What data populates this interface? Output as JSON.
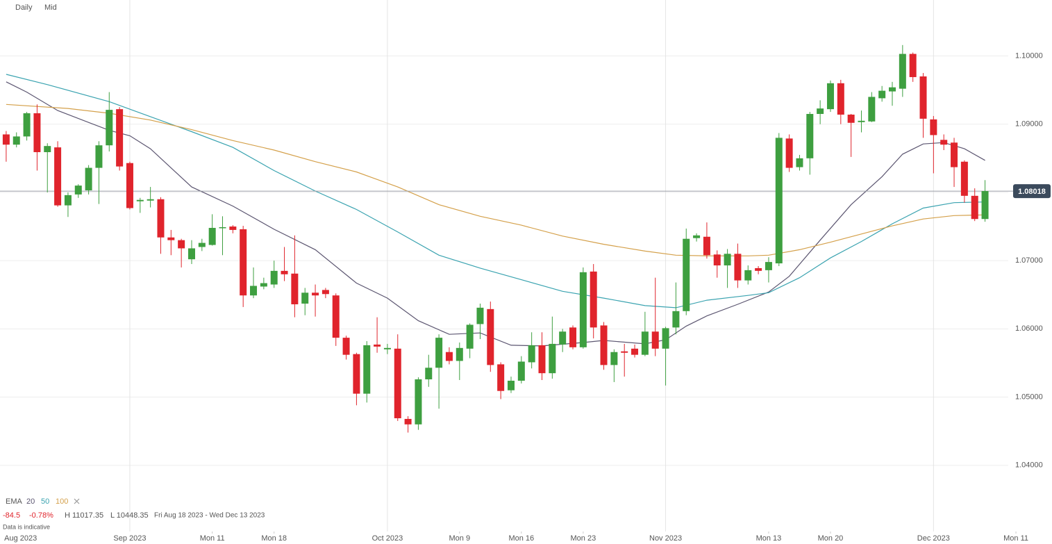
{
  "toolbar": {
    "interval": "Daily",
    "price_type": "Mid"
  },
  "chart_data": {
    "type": "candlestick",
    "up_color": "#3e9f40",
    "down_color": "#e0242c",
    "ylim": [
      1.0303,
      1.1082
    ],
    "xlim": [
      -0.6,
      101.5
    ],
    "yticks": [
      {
        "value": 1.1,
        "label": "1.10000"
      },
      {
        "value": 1.09,
        "label": "1.09000"
      },
      {
        "value": 1.08,
        "label": "1.08000"
      },
      {
        "value": 1.07,
        "label": "1.07000"
      },
      {
        "value": 1.06,
        "label": "1.06000"
      },
      {
        "value": 1.05,
        "label": "1.05000"
      },
      {
        "value": 1.04,
        "label": "1.04000"
      }
    ],
    "x_month_ticks": [
      {
        "value": 1.4,
        "label": "Aug 2023"
      },
      {
        "value": 12,
        "label": "Sep 2023"
      },
      {
        "value": 37,
        "label": "Oct 2023"
      },
      {
        "value": 64,
        "label": "Nov 2023"
      },
      {
        "value": 90,
        "label": "Dec 2023"
      }
    ],
    "x_week_ticks": [
      {
        "value": 20,
        "label": "Mon 11"
      },
      {
        "value": 26,
        "label": "Mon 18"
      },
      {
        "value": 44,
        "label": "Mon 9"
      },
      {
        "value": 50,
        "label": "Mon 16"
      },
      {
        "value": 56,
        "label": "Mon 23"
      },
      {
        "value": 74,
        "label": "Mon 13"
      },
      {
        "value": 80,
        "label": "Mon 20"
      },
      {
        "value": 98,
        "label": "Mon 11"
      }
    ],
    "candles": {
      "open": [
        1.0885,
        1.087,
        1.0882,
        1.0916,
        1.0859,
        1.0866,
        1.0781,
        1.0797,
        1.0803,
        1.0836,
        1.0869,
        1.0922,
        1.0843,
        1.0787,
        1.0788,
        1.079,
        1.0734,
        1.073,
        1.0702,
        1.072,
        1.0723,
        1.0748,
        1.075,
        1.0746,
        1.0649,
        1.0662,
        1.0665,
        1.0685,
        1.0681,
        1.0637,
        1.0653,
        1.0657,
        1.0649,
        1.0587,
        1.0563,
        1.0505,
        1.0577,
        1.057,
        1.0571,
        1.0468,
        1.046,
        1.0526,
        1.0543,
        1.0566,
        1.0553,
        1.0571,
        1.0607,
        1.0629,
        1.0548,
        1.051,
        1.0524,
        1.0551,
        1.0576,
        1.0535,
        1.0577,
        1.0602,
        1.0573,
        1.0684,
        1.0605,
        1.0547,
        1.0567,
        1.0571,
        1.0562,
        1.0596,
        1.0571,
        1.0602,
        1.0626,
        1.0733,
        1.0735,
        1.0709,
        1.0693,
        1.071,
        1.0671,
        1.0689,
        1.0686,
        1.0696,
        1.0879,
        1.0837,
        1.085,
        1.0915,
        1.0922,
        1.096,
        1.0914,
        1.0903,
        1.0904,
        1.0938,
        1.0948,
        1.0952,
        1.1003,
        1.097,
        1.0907,
        1.0877,
        1.0873,
        1.0845,
        1.0795,
        1.0761
      ],
      "high": [
        1.089,
        1.0888,
        1.0918,
        1.0929,
        1.0872,
        1.0875,
        1.08,
        1.0812,
        1.084,
        1.0875,
        1.0947,
        1.0925,
        1.0845,
        1.0792,
        1.0808,
        1.0793,
        1.0745,
        1.0732,
        1.073,
        1.0732,
        1.0768,
        1.0765,
        1.0752,
        1.0751,
        1.069,
        1.0675,
        1.07,
        1.072,
        1.0737,
        1.066,
        1.0665,
        1.066,
        1.0652,
        1.059,
        1.0565,
        1.0582,
        1.0617,
        1.0578,
        1.0592,
        1.0472,
        1.0529,
        1.0562,
        1.0592,
        1.0573,
        1.058,
        1.0608,
        1.0637,
        1.064,
        1.0551,
        1.053,
        1.056,
        1.0595,
        1.0595,
        1.0618,
        1.06,
        1.0605,
        1.069,
        1.0695,
        1.061,
        1.057,
        1.0578,
        1.0577,
        1.0625,
        1.0675,
        1.0603,
        1.0668,
        1.0747,
        1.074,
        1.0756,
        1.0715,
        1.0717,
        1.0725,
        1.0693,
        1.0692,
        1.0705,
        1.0887,
        1.0885,
        1.0855,
        1.0918,
        1.0935,
        1.0964,
        1.0965,
        1.0915,
        1.092,
        1.0947,
        1.0956,
        1.0962,
        1.1016,
        1.1005,
        1.0975,
        1.0912,
        1.0885,
        1.088,
        1.0847,
        1.0806,
        1.0818
      ],
      "low": [
        1.0845,
        1.0866,
        1.0876,
        1.0832,
        1.08,
        1.0779,
        1.0764,
        1.0792,
        1.0797,
        1.0783,
        1.086,
        1.0832,
        1.0775,
        1.077,
        1.0778,
        1.071,
        1.0708,
        1.069,
        1.0695,
        1.0714,
        1.0722,
        1.0708,
        1.074,
        1.0632,
        1.0645,
        1.0658,
        1.066,
        1.067,
        1.0617,
        1.062,
        1.0618,
        1.0645,
        1.0575,
        1.0555,
        1.0488,
        1.0492,
        1.0565,
        1.0563,
        1.0465,
        1.0448,
        1.0452,
        1.0515,
        1.0483,
        1.0548,
        1.0525,
        1.0557,
        1.0585,
        1.0537,
        1.0497,
        1.0506,
        1.052,
        1.0542,
        1.0525,
        1.0527,
        1.0566,
        1.057,
        1.0571,
        1.0586,
        1.054,
        1.0522,
        1.053,
        1.0558,
        1.056,
        1.056,
        1.0517,
        1.0592,
        1.062,
        1.0728,
        1.0703,
        1.0675,
        1.066,
        1.066,
        1.0665,
        1.068,
        1.0668,
        1.0692,
        1.083,
        1.0832,
        1.0826,
        1.09,
        1.0918,
        1.09,
        1.0852,
        1.0888,
        1.0903,
        1.0933,
        1.0927,
        1.094,
        1.0962,
        1.088,
        1.0828,
        1.0862,
        1.0808,
        1.0785,
        1.0758,
        1.0757
      ],
      "close": [
        1.087,
        1.0882,
        1.0916,
        1.0859,
        1.0868,
        1.0781,
        1.0796,
        1.081,
        1.0836,
        1.0869,
        1.0921,
        1.0838,
        1.0777,
        1.0789,
        1.079,
        1.0734,
        1.073,
        1.0718,
        1.0718,
        1.0726,
        1.0748,
        1.0749,
        1.0745,
        1.0649,
        1.0663,
        1.0667,
        1.0685,
        1.068,
        1.0636,
        1.0653,
        1.0649,
        1.0651,
        1.0587,
        1.0562,
        1.0505,
        1.0576,
        1.0574,
        1.0572,
        1.0469,
        1.046,
        1.0526,
        1.0543,
        1.0587,
        1.0553,
        1.0572,
        1.0606,
        1.0631,
        1.0547,
        1.0509,
        1.0524,
        1.0552,
        1.0576,
        1.0535,
        1.0578,
        1.0596,
        1.0573,
        1.0683,
        1.0602,
        1.0547,
        1.0566,
        1.0565,
        1.0562,
        1.0596,
        1.0571,
        1.0601,
        1.0626,
        1.0732,
        1.0737,
        1.0708,
        1.0693,
        1.071,
        1.0671,
        1.0686,
        1.0685,
        1.0698,
        1.088,
        1.0836,
        1.085,
        1.0915,
        1.0923,
        1.096,
        1.0914,
        1.0902,
        1.0905,
        1.094,
        1.0949,
        1.0954,
        1.1003,
        1.0969,
        1.0908,
        1.0884,
        1.087,
        1.0837,
        1.0795,
        1.0761,
        1.0802
      ]
    },
    "indicator": {
      "name": "EMA",
      "series": [
        {
          "name": "20",
          "color": "#5b5570",
          "x": [
            0,
            2,
            5,
            10,
            12,
            14,
            18,
            22,
            26,
            30,
            34,
            37,
            40,
            43,
            46,
            49,
            52,
            56,
            58,
            62,
            64,
            66,
            68,
            71,
            74,
            76,
            79,
            82,
            85,
            87,
            89,
            91,
            93,
            95
          ],
          "values": [
            1.0962,
            1.0947,
            1.092,
            1.0891,
            1.0883,
            1.0864,
            1.0808,
            1.078,
            1.0746,
            1.0716,
            1.0667,
            1.0645,
            1.0612,
            1.0592,
            1.0594,
            1.0576,
            1.0575,
            1.058,
            1.0583,
            1.0578,
            1.0584,
            1.0604,
            1.0619,
            1.0636,
            1.0654,
            1.0677,
            1.073,
            1.0782,
            1.0823,
            1.0856,
            1.0871,
            1.0873,
            1.0864,
            1.0847
          ]
        },
        {
          "name": "50",
          "color": "#3aa3b0",
          "x": [
            0,
            4,
            10,
            14,
            18,
            22,
            26,
            30,
            34,
            38,
            42,
            46,
            50,
            54,
            58,
            62,
            65,
            68,
            72,
            74,
            77,
            80,
            83,
            86,
            89,
            92,
            95
          ],
          "values": [
            1.0973,
            1.0958,
            1.0933,
            1.0911,
            1.0889,
            1.0866,
            1.0832,
            1.0802,
            1.0775,
            1.0742,
            1.0708,
            1.0689,
            1.0672,
            1.0655,
            1.0645,
            1.0634,
            1.0631,
            1.0642,
            1.0649,
            1.0653,
            1.0675,
            1.0704,
            1.0728,
            1.0754,
            1.0777,
            1.0785,
            1.0786
          ]
        },
        {
          "name": "100",
          "color": "#d4a04a",
          "x": [
            0,
            6,
            10,
            14,
            18,
            22,
            26,
            30,
            34,
            38,
            42,
            46,
            50,
            54,
            58,
            62,
            65,
            68,
            72,
            74,
            77,
            80,
            83,
            86,
            89,
            92,
            95
          ],
          "values": [
            1.0929,
            1.0923,
            1.0916,
            1.0906,
            1.0892,
            1.0876,
            1.0862,
            1.0845,
            1.083,
            1.0808,
            1.0782,
            1.0765,
            1.0752,
            1.0736,
            1.0724,
            1.0714,
            1.0708,
            1.0707,
            1.0707,
            1.0708,
            1.0716,
            1.0727,
            1.0739,
            1.0751,
            1.0761,
            1.0766,
            1.0767
          ]
        }
      ]
    },
    "last_price": {
      "value": 1.08018,
      "label": "1.08018"
    }
  },
  "info": {
    "change": "-84.5",
    "change_pct": "-0.78%",
    "high": "H 11017.35",
    "low": "L 10448.35",
    "range": "Fri Aug 18 2023 - Wed Dec 13 2023",
    "note": "Data is indicative"
  }
}
